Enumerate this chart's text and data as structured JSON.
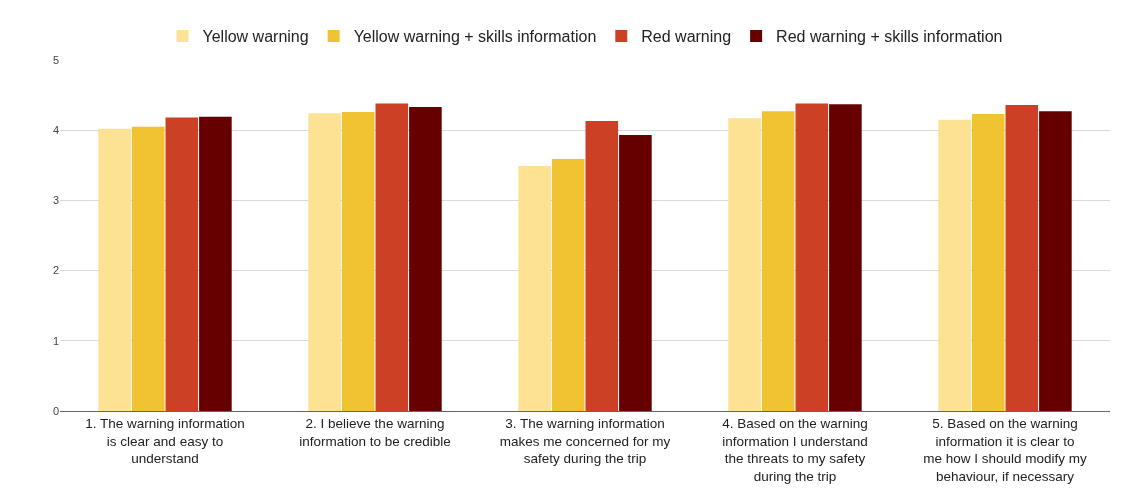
{
  "chart_data": {
    "type": "bar",
    "categories": [
      "1. The warning information is clear and easy to understand",
      "2. I believe the warning information to be credible",
      "3. The warning information makes me concerned for my safety during the trip",
      "4. Based on the warning information I understand the threats to my safety during the trip",
      "5. Based on the warning information it is clear to me how I should modify my behaviour, if necessary"
    ],
    "series": [
      {
        "name": "Yellow warning",
        "color": "#fde293",
        "values": [
          4.02,
          4.24,
          3.49,
          4.17,
          4.15
        ]
      },
      {
        "name": "Yellow warning + skills information",
        "color": "#f1c232",
        "values": [
          4.05,
          4.26,
          3.59,
          4.27,
          4.23
        ]
      },
      {
        "name": "Red warning",
        "color": "#cc4125",
        "values": [
          4.18,
          4.38,
          4.13,
          4.38,
          4.36
        ]
      },
      {
        "name": "Red warning + skills information",
        "color": "#660000",
        "values": [
          4.19,
          4.33,
          3.93,
          4.37,
          4.27
        ]
      }
    ],
    "ylim": [
      0,
      5
    ],
    "yticks": [
      0,
      1,
      2,
      3,
      4,
      5
    ],
    "grid": "y",
    "legend": "top"
  }
}
